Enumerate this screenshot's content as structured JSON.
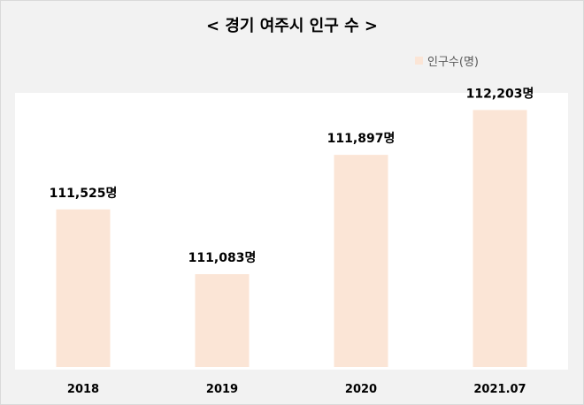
{
  "title": "< 경기 여주시 인구 수 >",
  "legend": {
    "label": "인구수(명)"
  },
  "colors": {
    "bar": "#fbe5d6",
    "plot_background": "#ffffff",
    "frame_background": "#f2f2f2"
  },
  "chart_data": {
    "type": "bar",
    "title": "< 경기 여주시 인구 수 >",
    "categories": [
      "2018",
      "2019",
      "2020",
      "2021.07"
    ],
    "series": [
      {
        "name": "인구수(명)",
        "values": [
          111525,
          111083,
          111897,
          112203
        ]
      }
    ],
    "data_labels": [
      "111,525명",
      "111,083명",
      "111,897명",
      "112,203명"
    ],
    "ylim": [
      110450,
      112320
    ],
    "grid": false,
    "legend_position": "top-right"
  }
}
